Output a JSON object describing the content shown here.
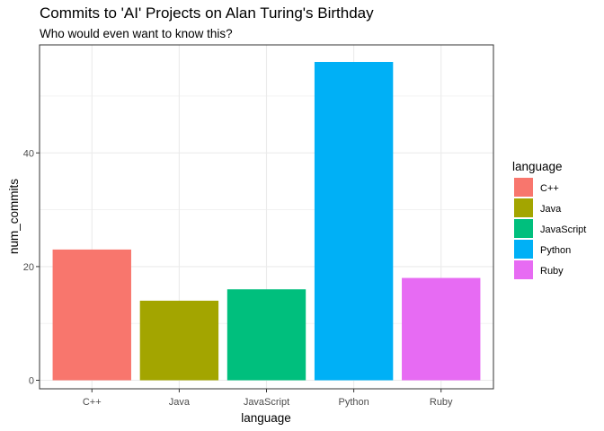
{
  "chart_data": {
    "type": "bar",
    "title": "Commits to 'AI' Projects on Alan Turing's Birthday",
    "subtitle": "Who would even want to know this?",
    "xlabel": "language",
    "ylabel": "num_commits",
    "categories": [
      "C++",
      "Java",
      "JavaScript",
      "Python",
      "Ruby"
    ],
    "values": [
      23,
      14,
      16,
      56,
      18
    ],
    "colors": [
      "#F8766D",
      "#A3A500",
      "#00BF7D",
      "#00B0F6",
      "#E76BF3"
    ],
    "ylim": [
      -1.5,
      59
    ],
    "yticks": [
      0,
      20,
      40
    ],
    "grid": true,
    "legend": {
      "title": "language",
      "position": "right",
      "entries": [
        "C++",
        "Java",
        "JavaScript",
        "Python",
        "Ruby"
      ]
    }
  }
}
